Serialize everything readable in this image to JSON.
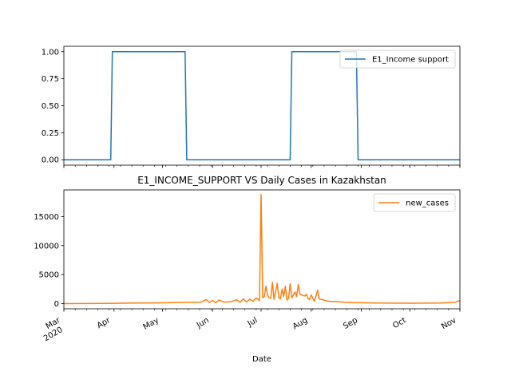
{
  "chart_data": [
    {
      "type": "line",
      "title": "",
      "xlabel": "",
      "ylabel": "",
      "x_range": [
        "2020-03-01",
        "2020-11-01"
      ],
      "ylim": [
        -0.05,
        1.05
      ],
      "yticks": [
        "0.00",
        "0.25",
        "0.50",
        "0.75",
        "1.00"
      ],
      "grid": false,
      "legend_position": "top-right",
      "series": [
        {
          "name": "E1_Income support",
          "color": "#1f77b4",
          "x": [
            "2020-03-01",
            "2020-03-30",
            "2020-03-31",
            "2020-05-15",
            "2020-05-16",
            "2020-07-19",
            "2020-07-20",
            "2020-08-29",
            "2020-08-30",
            "2020-11-01"
          ],
          "y": [
            0,
            0,
            1,
            1,
            0,
            0,
            1,
            1,
            0,
            0
          ]
        }
      ]
    },
    {
      "type": "line",
      "title": "E1_INCOME_SUPPORT VS Daily Cases in Kazakhstan",
      "xlabel": "Date",
      "ylabel": "",
      "x_range": [
        "2020-03-01",
        "2020-11-01"
      ],
      "ylim": [
        -900,
        19600
      ],
      "yticks": [
        "0",
        "5000",
        "10000",
        "15000"
      ],
      "xticks": [
        {
          "date": "2020-03-01",
          "label": "Mar",
          "sub": "2020"
        },
        {
          "date": "2020-04-01",
          "label": "Apr",
          "sub": ""
        },
        {
          "date": "2020-05-01",
          "label": "May",
          "sub": ""
        },
        {
          "date": "2020-06-01",
          "label": "Jun",
          "sub": ""
        },
        {
          "date": "2020-07-01",
          "label": "Jul",
          "sub": ""
        },
        {
          "date": "2020-08-01",
          "label": "Aug",
          "sub": ""
        },
        {
          "date": "2020-09-01",
          "label": "Sep",
          "sub": ""
        },
        {
          "date": "2020-10-01",
          "label": "Oct",
          "sub": ""
        },
        {
          "date": "2020-11-01",
          "label": "Nov",
          "sub": ""
        }
      ],
      "grid": false,
      "legend_position": "top-right",
      "series": [
        {
          "name": "new_cases",
          "color": "#ff7f0e",
          "x": [
            "2020-03-01",
            "2020-03-15",
            "2020-03-25",
            "2020-04-05",
            "2020-04-15",
            "2020-04-25",
            "2020-05-05",
            "2020-05-15",
            "2020-05-25",
            "2020-05-28",
            "2020-05-30",
            "2020-06-01",
            "2020-06-03",
            "2020-06-05",
            "2020-06-08",
            "2020-06-12",
            "2020-06-16",
            "2020-06-18",
            "2020-06-20",
            "2020-06-22",
            "2020-06-24",
            "2020-06-26",
            "2020-06-28",
            "2020-06-30",
            "2020-07-01",
            "2020-07-02",
            "2020-07-03",
            "2020-07-04",
            "2020-07-05",
            "2020-07-06",
            "2020-07-07",
            "2020-07-08",
            "2020-07-09",
            "2020-07-10",
            "2020-07-11",
            "2020-07-12",
            "2020-07-13",
            "2020-07-14",
            "2020-07-15",
            "2020-07-16",
            "2020-07-17",
            "2020-07-18",
            "2020-07-19",
            "2020-07-20",
            "2020-07-21",
            "2020-07-22",
            "2020-07-23",
            "2020-07-24",
            "2020-07-25",
            "2020-07-26",
            "2020-07-27",
            "2020-07-28",
            "2020-07-29",
            "2020-07-30",
            "2020-07-31",
            "2020-08-01",
            "2020-08-03",
            "2020-08-05",
            "2020-08-06",
            "2020-08-07",
            "2020-08-08",
            "2020-08-10",
            "2020-08-12",
            "2020-08-15",
            "2020-08-18",
            "2020-08-22",
            "2020-08-27",
            "2020-09-01",
            "2020-09-10",
            "2020-09-20",
            "2020-10-01",
            "2020-10-10",
            "2020-10-20",
            "2020-10-26",
            "2020-10-29",
            "2020-10-31",
            "2020-11-01"
          ],
          "y": [
            0,
            2,
            40,
            60,
            90,
            120,
            150,
            200,
            260,
            700,
            200,
            520,
            150,
            600,
            250,
            300,
            650,
            200,
            800,
            300,
            750,
            400,
            1000,
            500,
            18800,
            1000,
            1200,
            3000,
            1500,
            1000,
            900,
            3700,
            700,
            2000,
            3500,
            1000,
            800,
            2500,
            1200,
            3000,
            600,
            900,
            3400,
            1000,
            1500,
            2000,
            1200,
            3300,
            1600,
            1500,
            1400,
            1300,
            1600,
            900,
            700,
            1500,
            400,
            2300,
            800,
            700,
            700,
            500,
            400,
            350,
            300,
            200,
            150,
            150,
            100,
            80,
            60,
            80,
            100,
            160,
            200,
            450,
            500
          ]
        }
      ]
    }
  ]
}
